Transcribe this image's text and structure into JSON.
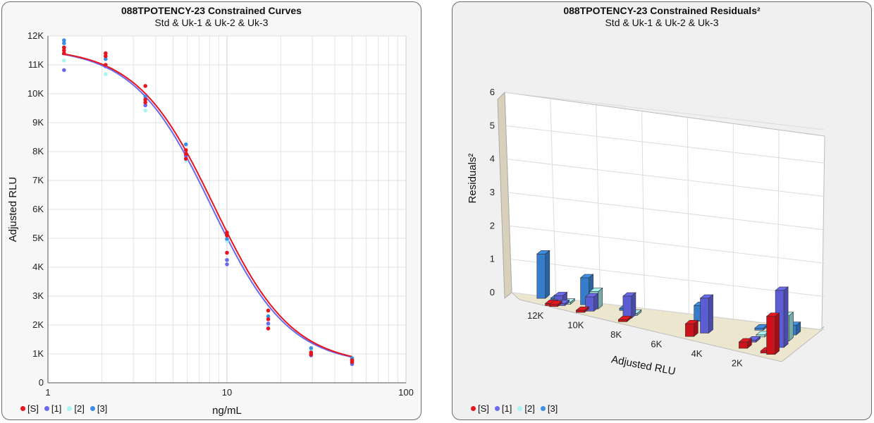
{
  "colors": {
    "S": "#e8141e",
    "U1": "#6a6af0",
    "U2": "#aaf4f4",
    "U3": "#3c8ee6"
  },
  "legend": [
    {
      "key": "S",
      "label": "[S]"
    },
    {
      "key": "U1",
      "label": "[1]"
    },
    {
      "key": "U2",
      "label": "[2]"
    },
    {
      "key": "U3",
      "label": "[3]"
    }
  ],
  "chart_data": [
    {
      "type": "scatter",
      "title": "088TPOTENCY-23 Constrained Curves",
      "subtitle": "Std & Uk-1 & Uk-2 & Uk-3",
      "xlabel": "ng/mL",
      "ylabel": "Adjusted RLU",
      "xscale": "log",
      "xlim": [
        1,
        100
      ],
      "ylim": [
        0,
        12000
      ],
      "xticks": [
        {
          "v": 1,
          "label": "1"
        },
        {
          "v": 10,
          "label": "10"
        },
        {
          "v": 100,
          "label": "100"
        }
      ],
      "yticks": [
        {
          "v": 0,
          "label": "0"
        },
        {
          "v": 1000,
          "label": "1K"
        },
        {
          "v": 2000,
          "label": "2K"
        },
        {
          "v": 3000,
          "label": "3K"
        },
        {
          "v": 4000,
          "label": "4K"
        },
        {
          "v": 5000,
          "label": "5K"
        },
        {
          "v": 6000,
          "label": "6K"
        },
        {
          "v": 7000,
          "label": "7K"
        },
        {
          "v": 8000,
          "label": "8K"
        },
        {
          "v": 9000,
          "label": "9K"
        },
        {
          "v": 10000,
          "label": "10K"
        },
        {
          "v": 11000,
          "label": "11K"
        },
        {
          "v": 12000,
          "label": "12K"
        }
      ],
      "grid": true,
      "series": [
        {
          "key": "S",
          "points": [
            [
              1.23,
              11600
            ],
            [
              1.23,
              11500
            ],
            [
              1.23,
              11400
            ],
            [
              2.1,
              11400
            ],
            [
              2.1,
              11300
            ],
            [
              2.1,
              11000
            ],
            [
              3.5,
              10270
            ],
            [
              3.5,
              9800
            ],
            [
              3.5,
              9700
            ],
            [
              5.9,
              8050
            ],
            [
              5.9,
              7920
            ],
            [
              5.9,
              7750
            ],
            [
              10,
              5200
            ],
            [
              10,
              5100
            ],
            [
              10,
              4500
            ],
            [
              17,
              2500
            ],
            [
              17,
              2200
            ],
            [
              17,
              1880
            ],
            [
              29.5,
              1050
            ],
            [
              29.5,
              980
            ],
            [
              50,
              780
            ],
            [
              50,
              720
            ]
          ]
        },
        {
          "key": "U1",
          "points": [
            [
              1.23,
              10820
            ],
            [
              1.23,
              11600
            ],
            [
              2.1,
              10950
            ],
            [
              3.5,
              9600
            ],
            [
              5.9,
              7850
            ],
            [
              10,
              4250
            ],
            [
              10,
              4100
            ],
            [
              17,
              2050
            ],
            [
              29.5,
              950
            ],
            [
              50,
              650
            ]
          ]
        },
        {
          "key": "U2",
          "points": [
            [
              1.23,
              11150
            ],
            [
              2.1,
              10680
            ],
            [
              3.5,
              9420
            ],
            [
              5.9,
              7700
            ],
            [
              10,
              4900
            ],
            [
              17,
              1950
            ],
            [
              29.5,
              1100
            ],
            [
              50,
              820
            ]
          ]
        },
        {
          "key": "U3",
          "points": [
            [
              1.23,
              11850
            ],
            [
              1.23,
              11750
            ],
            [
              2.1,
              11200
            ],
            [
              3.5,
              9900
            ],
            [
              5.9,
              8250
            ],
            [
              10,
              4980
            ],
            [
              17,
              2300
            ],
            [
              29.5,
              1200
            ],
            [
              50,
              850
            ],
            [
              50,
              800
            ]
          ]
        }
      ],
      "curves": [
        {
          "key": "S",
          "a": 11600,
          "d": 600,
          "c": 8.5,
          "b": 2.0
        },
        {
          "key": "U1",
          "a": 11600,
          "d": 600,
          "c": 8.2,
          "b": 2.0
        }
      ]
    },
    {
      "type": "bar3d",
      "title": "088TPOTENCY-23 Constrained Residuals²",
      "subtitle": "Std & Uk-1 & Uk-2 & Uk-3",
      "xlabel": "Adjusted RLU",
      "ylabel": "Residuals²",
      "xlim": [
        13000,
        0
      ],
      "ylim": [
        0,
        6
      ],
      "xticks": [
        {
          "v": 12000,
          "label": "12K"
        },
        {
          "v": 10000,
          "label": "10K"
        },
        {
          "v": 8000,
          "label": "8K"
        },
        {
          "v": 6000,
          "label": "6K"
        },
        {
          "v": 4000,
          "label": "4K"
        },
        {
          "v": 2000,
          "label": "2K"
        }
      ],
      "yticks": [
        {
          "v": 0,
          "label": "0"
        },
        {
          "v": 1,
          "label": "1"
        },
        {
          "v": 2,
          "label": "2"
        },
        {
          "v": 3,
          "label": "3"
        },
        {
          "v": 4,
          "label": "4"
        },
        {
          "v": 5,
          "label": "5"
        },
        {
          "v": 6,
          "label": "6"
        }
      ],
      "series": [
        {
          "key": "S",
          "bars": [
            [
              11500,
              0.05
            ],
            [
              11300,
              0.05
            ],
            [
              10000,
              0.03
            ],
            [
              7950,
              0.05
            ],
            [
              4700,
              0.4
            ],
            [
              2100,
              0.2
            ],
            [
              1050,
              0.05
            ],
            [
              760,
              1.2
            ]
          ]
        },
        {
          "key": "U1",
          "bars": [
            [
              11050,
              0.3
            ],
            [
              10950,
              0.05
            ],
            [
              9600,
              0.45
            ],
            [
              7850,
              0.7
            ],
            [
              4250,
              1.1
            ],
            [
              2050,
              0.05
            ],
            [
              750,
              1.8
            ]
          ]
        },
        {
          "key": "U2",
          "bars": [
            [
              11150,
              0.05
            ],
            [
              10700,
              0.05
            ],
            [
              9450,
              0.55
            ],
            [
              7700,
              0.05
            ],
            [
              1950,
              0.05
            ],
            [
              850,
              0.8
            ]
          ]
        },
        {
          "key": "U3",
          "bars": [
            [
              11800,
              1.4
            ],
            [
              11200,
              0.05
            ],
            [
              9900,
              0.85
            ],
            [
              8200,
              0.05
            ],
            [
              4950,
              0.5
            ],
            [
              2300,
              0.05
            ],
            [
              860,
              0.3
            ]
          ]
        }
      ]
    }
  ]
}
